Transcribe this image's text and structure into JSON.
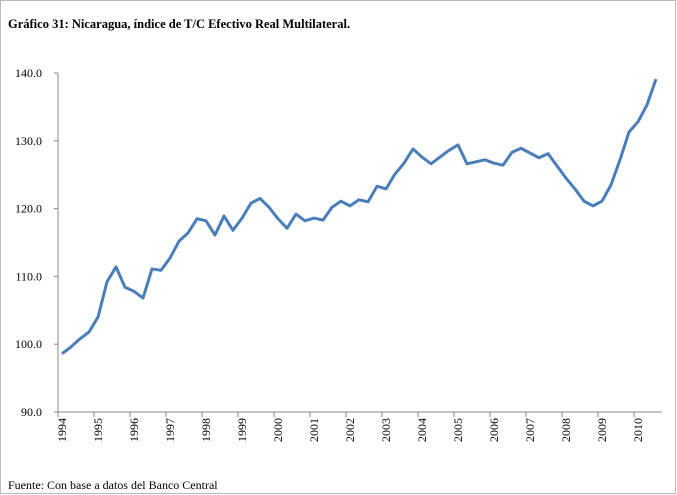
{
  "chart_data": {
    "type": "line",
    "title": "Gráfico 31: Nicaragua, índice de T/C Efectivo Real Multilateral.",
    "source": "Fuente: Con base a datos del Banco Central",
    "categories": [
      "1994",
      null,
      null,
      null,
      "1995",
      null,
      null,
      null,
      "1996",
      null,
      null,
      null,
      "1997",
      null,
      null,
      null,
      "1998",
      null,
      null,
      null,
      "1999",
      null,
      null,
      null,
      "2000",
      null,
      null,
      null,
      "2001",
      null,
      null,
      null,
      "2002",
      null,
      null,
      null,
      "2003",
      null,
      null,
      null,
      "2004",
      null,
      null,
      null,
      "2005",
      null,
      null,
      null,
      "2006",
      null,
      null,
      null,
      "2007",
      null,
      null,
      null,
      "2008",
      null,
      null,
      null,
      "2009",
      null,
      null,
      null,
      "2010",
      null,
      null
    ],
    "series": [
      {
        "color": "#4a7ebb",
        "values": [
          98.6,
          99.6,
          100.8,
          101.8,
          104.0,
          109.2,
          111.4,
          108.4,
          107.8,
          106.8,
          111.1,
          110.9,
          112.7,
          115.2,
          116.4,
          118.5,
          118.2,
          116.1,
          118.9,
          116.8,
          118.6,
          120.8,
          121.5,
          120.2,
          118.5,
          117.1,
          119.2,
          118.2,
          118.6,
          118.3,
          120.2,
          121.1,
          120.4,
          121.3,
          121.0,
          123.3,
          122.9,
          125.1,
          126.7,
          128.8,
          127.6,
          126.6,
          127.6,
          128.6,
          129.4,
          126.6,
          126.9,
          127.2,
          126.7,
          126.4,
          128.3,
          128.9,
          128.2,
          127.5,
          128.1,
          126.3,
          124.5,
          122.9,
          121.1,
          120.4,
          121.1,
          123.5,
          127.2,
          131.3,
          132.8,
          135.3,
          139.1
        ]
      }
    ],
    "ylim": [
      90,
      140
    ],
    "yticks": [
      {
        "value": 90,
        "label": "90.0"
      },
      {
        "value": 100,
        "label": "100.0"
      },
      {
        "value": 110,
        "label": "110.0"
      },
      {
        "value": 120,
        "label": "120.0"
      },
      {
        "value": 130,
        "label": "130.0"
      },
      {
        "value": 140,
        "label": "140.0"
      }
    ],
    "grid": false
  }
}
